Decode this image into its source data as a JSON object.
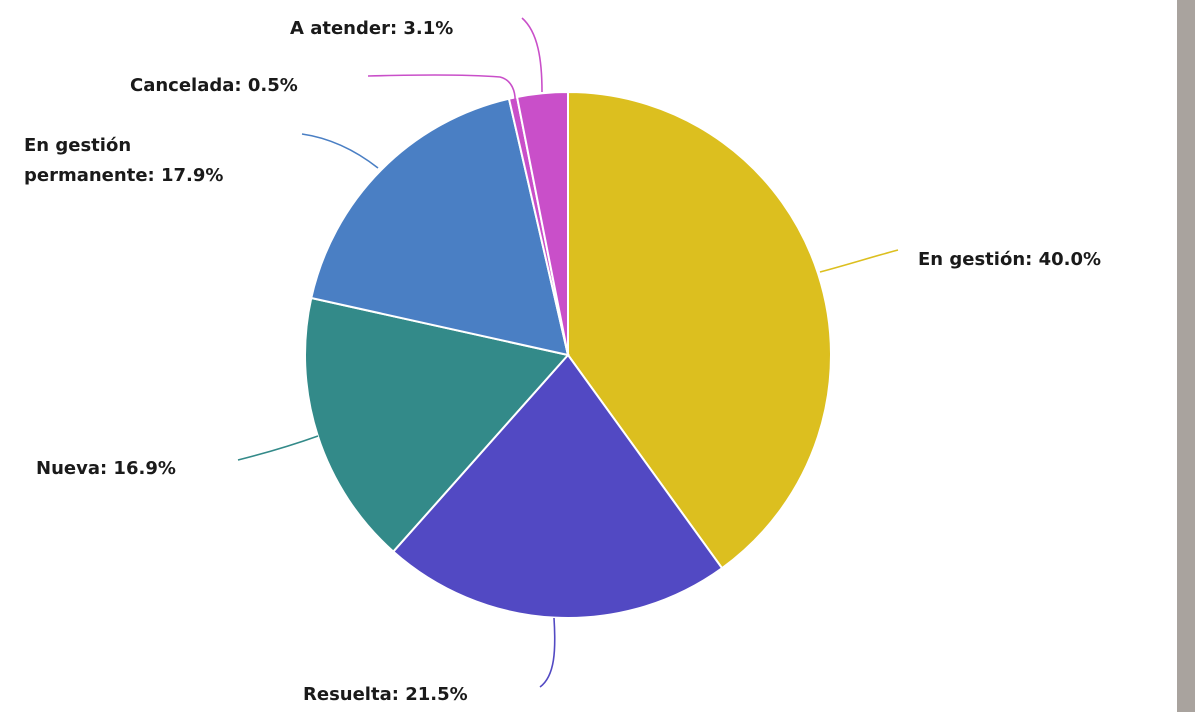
{
  "colors": {
    "background": "#ffffff",
    "scrollbar": "#a9a39e"
  },
  "chart_data": {
    "type": "pie",
    "title": "",
    "slices": [
      {
        "label": "En gestión",
        "value": 40.0,
        "display": "En gestión: 40.0%",
        "color": "#dcbf1f"
      },
      {
        "label": "Resuelta",
        "value": 21.5,
        "display": "Resuelta: 21.5%",
        "color": "#5249c3"
      },
      {
        "label": "Nueva",
        "value": 16.9,
        "display": "Nueva: 16.9%",
        "color": "#338a89"
      },
      {
        "label": "En gestión permanente",
        "value": 17.9,
        "display_lines": [
          "En gestión",
          "permanente: 17.9%"
        ],
        "color": "#4a7fc4"
      },
      {
        "label": "Cancelada",
        "value": 0.5,
        "display": "Cancelada: 0.5%",
        "color": "#c94fc9"
      },
      {
        "label": "A atender",
        "value": 3.1,
        "display": "A atender: 3.1%",
        "color": "#c94fc9"
      }
    ],
    "start_angle_deg": 0,
    "direction": "clockwise"
  }
}
